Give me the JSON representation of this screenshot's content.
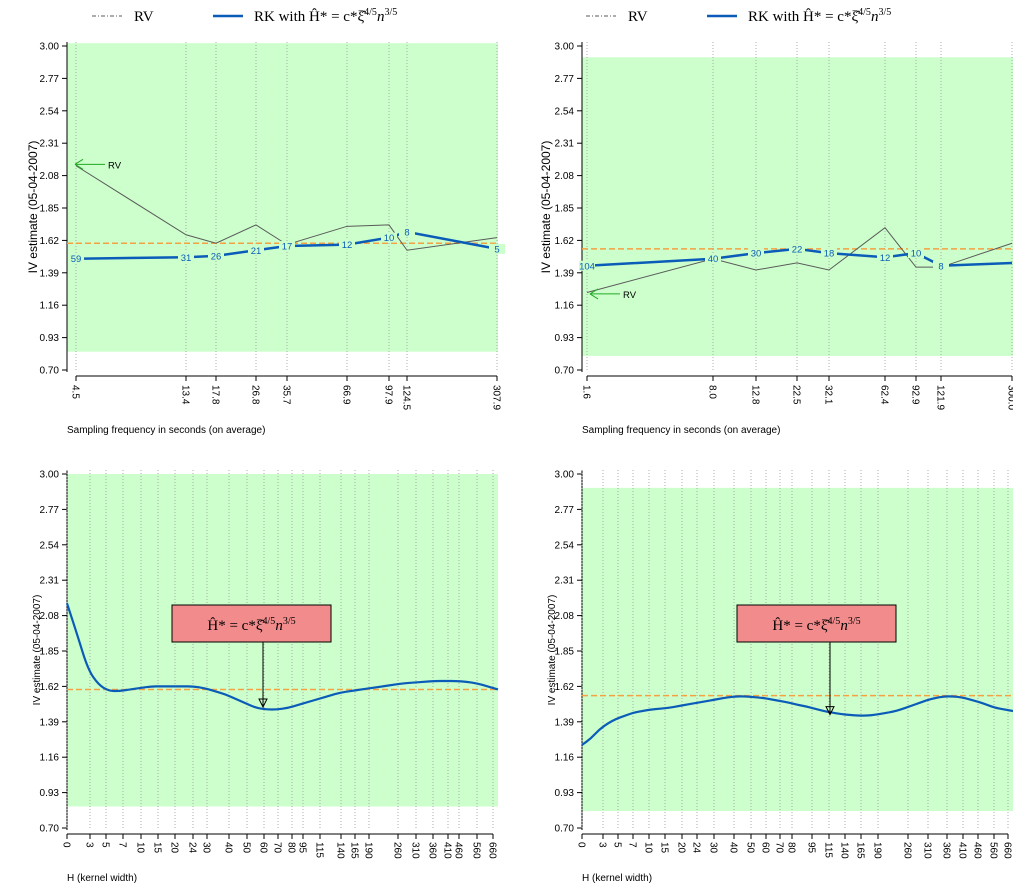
{
  "colors": {
    "band": "#ccffcc",
    "rk": "#0b5cb8",
    "rv": "#5a5a5a",
    "dashed": "#f5a142",
    "arrow_green": "#22aa22",
    "callout_fill": "#f28b8b",
    "tick_grid": "#9a9a9a"
  },
  "legend": {
    "rv_label": "RV",
    "rk_label": "RK with Ĥ* = c*ξ̂",
    "rk_label_exp1": "4/5",
    "rk_label_n": "n",
    "rk_label_exp2": "3/5"
  },
  "callout": {
    "main": "Ĥ* = c*ξ̂",
    "exp1": "4/5",
    "n": "n",
    "exp2": "3/5"
  },
  "chart_data": [
    {
      "type": "line",
      "title": "",
      "xlabel": "Sampling frequency in seconds (on average)",
      "ylabel": "IV estimate (05-04-2007)",
      "ylim": [
        0.7,
        3.0
      ],
      "yticks": [
        "0.70",
        "0.93",
        "1.16",
        "1.39",
        "1.62",
        "1.85",
        "2.08",
        "2.31",
        "2.54",
        "2.77",
        "3.00"
      ],
      "band": [
        0.83,
        3.02
      ],
      "hline": 1.6,
      "xticks": [
        "4.5",
        "13.4",
        "17.8",
        "26.8",
        "35.7",
        "66.9",
        "97.9",
        "124.5",
        "307.9"
      ],
      "rk_points": [
        {
          "tick": "4.5",
          "value": 1.49,
          "label": "59"
        },
        {
          "tick": "13.4",
          "value": 1.5,
          "label": "31"
        },
        {
          "tick": "17.8",
          "value": 1.51,
          "label": "26"
        },
        {
          "tick": "26.8",
          "value": 1.55,
          "label": "21"
        },
        {
          "tick": "35.7",
          "value": 1.58,
          "label": "17"
        },
        {
          "tick": "66.9",
          "value": 1.59,
          "label": "12"
        },
        {
          "tick": "97.9",
          "value": 1.64,
          "label": "10"
        },
        {
          "tick": "124.5",
          "value": 1.68,
          "label": "8"
        },
        {
          "tick": "307.9",
          "value": 1.56,
          "label": "5"
        }
      ],
      "rv_points": [
        {
          "tick": "4.5",
          "value": 2.15
        },
        {
          "tick": "13.4",
          "value": 1.66
        },
        {
          "tick": "17.8",
          "value": 1.6
        },
        {
          "tick": "26.8",
          "value": 1.73
        },
        {
          "tick": "35.7",
          "value": 1.59
        },
        {
          "tick": "66.9",
          "value": 1.72
        },
        {
          "tick": "97.9",
          "value": 1.73
        },
        {
          "tick": "124.5",
          "value": 1.55
        },
        {
          "tick": "307.9",
          "value": 1.64
        }
      ],
      "rv_annotation": "RV",
      "rv_annotation_value": 2.16
    },
    {
      "type": "line",
      "title": "",
      "xlabel": "Sampling frequency in seconds (on average)",
      "ylabel": "IV estimate (05-04-2007)",
      "ylim": [
        0.7,
        3.0
      ],
      "yticks": [
        "0.70",
        "0.93",
        "1.16",
        "1.39",
        "1.62",
        "1.85",
        "2.08",
        "2.31",
        "2.54",
        "2.77",
        "3.00"
      ],
      "band": [
        0.8,
        2.92
      ],
      "hline": 1.56,
      "xticks": [
        "1.6",
        "8.0",
        "12.8",
        "22.5",
        "32.1",
        "62.4",
        "92.9",
        "121.9",
        "300.0"
      ],
      "rk_points": [
        {
          "tick": "1.6",
          "value": 1.44,
          "label": "104"
        },
        {
          "tick": "8.0",
          "value": 1.49,
          "label": "40"
        },
        {
          "tick": "12.8",
          "value": 1.53,
          "label": "30"
        },
        {
          "tick": "22.5",
          "value": 1.56,
          "label": "22"
        },
        {
          "tick": "32.1",
          "value": 1.53,
          "label": "18"
        },
        {
          "tick": "62.4",
          "value": 1.5,
          "label": "12"
        },
        {
          "tick": "92.9",
          "value": 1.53,
          "label": "10"
        },
        {
          "tick": "121.9",
          "value": 1.44,
          "label": "8"
        },
        {
          "tick": "300.0",
          "value": 1.46,
          "label": ""
        }
      ],
      "rv_points": [
        {
          "tick": "1.6",
          "value": 1.25
        },
        {
          "tick": "8.0",
          "value": 1.49
        },
        {
          "tick": "12.8",
          "value": 1.41
        },
        {
          "tick": "22.5",
          "value": 1.46
        },
        {
          "tick": "32.1",
          "value": 1.41
        },
        {
          "tick": "62.4",
          "value": 1.71
        },
        {
          "tick": "92.9",
          "value": 1.43
        },
        {
          "tick": "121.9",
          "value": 1.43
        },
        {
          "tick": "300.0",
          "value": 1.6
        }
      ],
      "rv_annotation": "RV",
      "rv_annotation_value": 1.24
    },
    {
      "type": "line",
      "title": "",
      "xlabel": "H (kernel width)",
      "ylabel": "IV estimate (05-04-2007)",
      "ylim": [
        0.7,
        3.0
      ],
      "yticks": [
        "0.70",
        "0.93",
        "1.16",
        "1.39",
        "1.62",
        "1.85",
        "2.08",
        "2.31",
        "2.54",
        "2.77",
        "3.00"
      ],
      "band": [
        0.84,
        3.0
      ],
      "hline": 1.6,
      "xticks": [
        "0",
        "3",
        "5",
        "7",
        "10",
        "15",
        "20",
        "24",
        "30",
        "40",
        "50",
        "60",
        "70",
        "80",
        "95",
        "115",
        "140",
        "165",
        "190",
        "260",
        "310",
        "360",
        "410",
        "460",
        "560",
        "660"
      ],
      "curve": [
        2.16,
        1.95,
        1.73,
        1.63,
        1.59,
        1.59,
        1.6,
        1.61,
        1.62,
        1.62,
        1.62,
        1.62,
        1.62,
        1.61,
        1.59,
        1.57,
        1.54,
        1.51,
        1.48,
        1.47,
        1.47,
        1.48,
        1.5,
        1.52,
        1.54,
        1.56,
        1.58,
        1.59,
        1.6,
        1.61,
        1.62,
        1.63,
        1.64,
        1.645,
        1.65,
        1.655,
        1.655,
        1.655,
        1.65,
        1.64,
        1.62,
        1.6
      ],
      "arrow_target_value": 1.48
    },
    {
      "type": "line",
      "title": "",
      "xlabel": "H (kernel width)",
      "ylabel": "IV estimate (05-04-2007)",
      "ylim": [
        0.7,
        3.0
      ],
      "yticks": [
        "0.70",
        "0.93",
        "1.16",
        "1.39",
        "1.62",
        "1.85",
        "2.08",
        "2.31",
        "2.54",
        "2.77",
        "3.00"
      ],
      "band": [
        0.81,
        2.91
      ],
      "hline": 1.56,
      "xticks": [
        "0",
        "3",
        "5",
        "7",
        "10",
        "15",
        "20",
        "24",
        "30",
        "40",
        "50",
        "60",
        "70",
        "80",
        "95",
        "115",
        "140",
        "165",
        "190",
        "260",
        "310",
        "360",
        "410",
        "460",
        "560",
        "660"
      ],
      "curve": [
        1.24,
        1.28,
        1.34,
        1.38,
        1.41,
        1.43,
        1.45,
        1.46,
        1.47,
        1.475,
        1.48,
        1.49,
        1.5,
        1.51,
        1.52,
        1.53,
        1.54,
        1.55,
        1.555,
        1.555,
        1.55,
        1.545,
        1.535,
        1.525,
        1.515,
        1.5,
        1.49,
        1.475,
        1.46,
        1.45,
        1.44,
        1.435,
        1.43,
        1.43,
        1.435,
        1.445,
        1.455,
        1.47,
        1.49,
        1.51,
        1.53,
        1.545,
        1.555,
        1.555,
        1.55,
        1.535,
        1.52,
        1.5,
        1.48,
        1.47,
        1.46
      ],
      "arrow_target_value": 1.43
    }
  ]
}
